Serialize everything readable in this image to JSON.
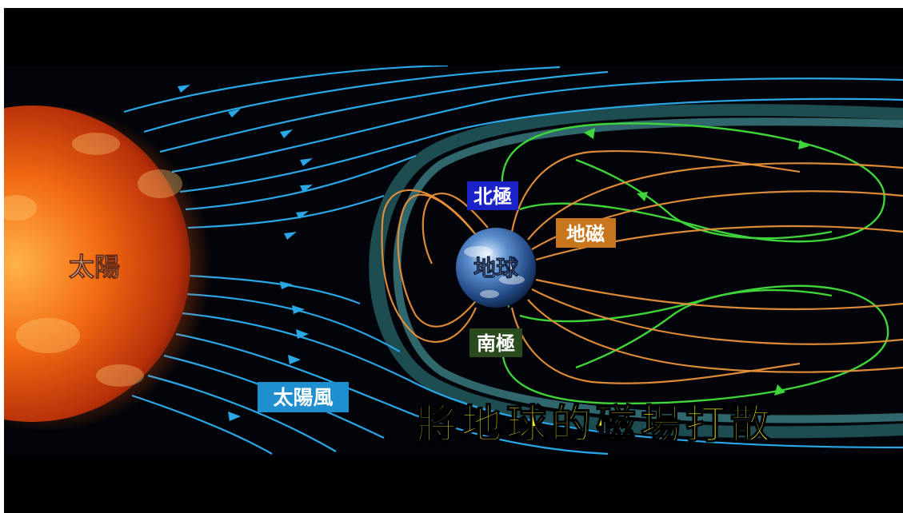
{
  "labels": {
    "sun": "太陽",
    "earth": "地球",
    "north_pole": "北極",
    "south_pole": "南極",
    "geomagnetic": "地磁",
    "solar_wind": "太陽風",
    "caption": "將地球的磁場打散"
  },
  "colors": {
    "sun_core": "#ff8a1a",
    "sun_edge": "#8a1a05",
    "solar_wind_lines": "#2aa7e6",
    "magnetosphere_glow": "#4fd4d9",
    "geomagnetic_lines": "#e8913a",
    "auroral_lines": "#3fd43a",
    "north_pole_box": "#1a22c8",
    "south_pole_box": "#2a4a1e",
    "geomagnetic_box": "#c8761e",
    "solar_wind_box": "#1f8fcf",
    "caption": "#f2ef1a"
  },
  "icons": [
    "sun",
    "earth"
  ]
}
